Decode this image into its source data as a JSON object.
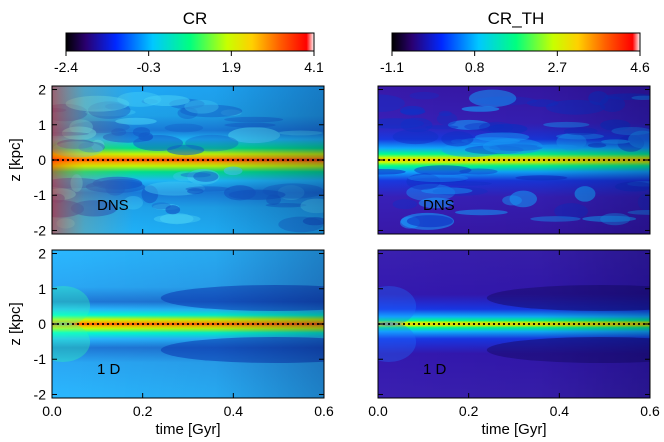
{
  "chart_data": [
    {
      "type": "heatmap",
      "colorbar_title": "CR",
      "colorbar_ticks": [
        "-2.4",
        "-0.3",
        "1.9",
        "4.1"
      ],
      "colorbar_range": [
        -2.4,
        4.1
      ],
      "panels": [
        {
          "label": "DNS",
          "xlabel": "",
          "ylabel": "z [kpc]",
          "xlim": [
            0.0,
            0.6
          ],
          "ylim": [
            -2.1,
            2.1
          ],
          "xticks": [
            "",
            "",
            "",
            ""
          ],
          "yticks": [
            "-2",
            "-1",
            "0",
            "1",
            "2"
          ]
        },
        {
          "label": "1 D",
          "xlabel": "time [Gyr]",
          "ylabel": "z [kpc]",
          "xlim": [
            0.0,
            0.6
          ],
          "ylim": [
            -2.1,
            2.1
          ],
          "xticks": [
            "0.0",
            "0.2",
            "0.4",
            "0.6"
          ],
          "yticks": [
            "-2",
            "-1",
            "0",
            "1",
            "2"
          ]
        }
      ]
    },
    {
      "type": "heatmap",
      "colorbar_title": "CR_TH",
      "colorbar_ticks": [
        "-1.1",
        "0.8",
        "2.7",
        "4.6"
      ],
      "colorbar_range": [
        -1.1,
        4.6
      ],
      "panels": [
        {
          "label": "DNS",
          "xlabel": "",
          "ylabel": "",
          "xlim": [
            0.0,
            0.6
          ],
          "ylim": [
            -2.1,
            2.1
          ],
          "xticks": [
            "",
            "",
            "",
            ""
          ],
          "yticks": [
            "",
            "",
            "",
            "",
            ""
          ]
        },
        {
          "label": "1 D",
          "xlabel": "time [Gyr]",
          "ylabel": "",
          "xlim": [
            0.0,
            0.6
          ],
          "ylim": [
            -2.1,
            2.1
          ],
          "xticks": [
            "0.0",
            "0.2",
            "0.4",
            "0.6"
          ],
          "yticks": [
            "",
            "",
            "",
            "",
            ""
          ]
        }
      ]
    }
  ],
  "x_tick_values": [
    0.0,
    0.2,
    0.4,
    0.6
  ],
  "y_tick_values": [
    -2,
    -1,
    0,
    1,
    2
  ],
  "colormap": [
    "#000000",
    "#3a0090",
    "#0030ff",
    "#00c8ff",
    "#00ff80",
    "#c8ff00",
    "#ffd000",
    "#ff6000",
    "#ff0000",
    "#ffffff"
  ]
}
